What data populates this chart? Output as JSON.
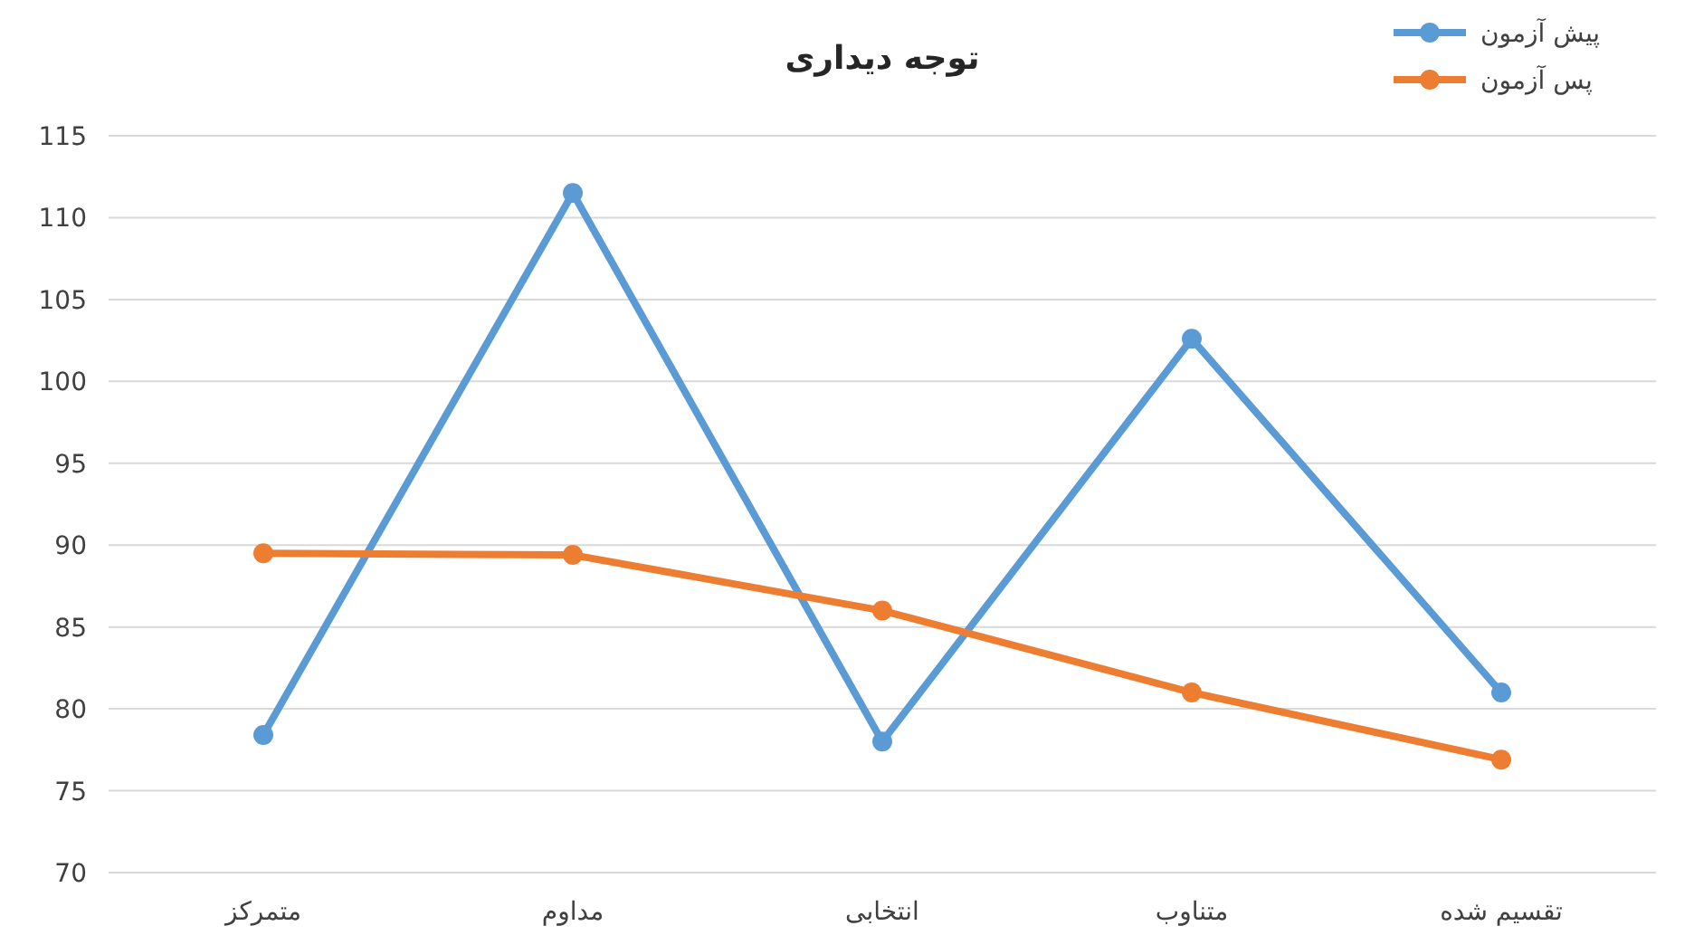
{
  "chart_data": {
    "type": "line",
    "title": "توجه دیداری",
    "categories": [
      "متمرکز",
      "مداوم",
      "انتخابی",
      "متناوب",
      "تقسیم شده"
    ],
    "series": [
      {
        "name": "پیش آزمون",
        "color": "#5b9bd5",
        "values": [
          78.4,
          111.5,
          78,
          102.6,
          81
        ]
      },
      {
        "name": "پس آزمون",
        "color": "#ed7d31",
        "values": [
          89.5,
          89.4,
          86,
          81,
          76.9
        ]
      }
    ],
    "ylim": [
      70,
      115
    ],
    "yticks": [
      70,
      75,
      80,
      85,
      90,
      95,
      100,
      105,
      110,
      115
    ],
    "grid": "y",
    "legend": "top right",
    "marker": "circle",
    "line_style": "solid"
  }
}
